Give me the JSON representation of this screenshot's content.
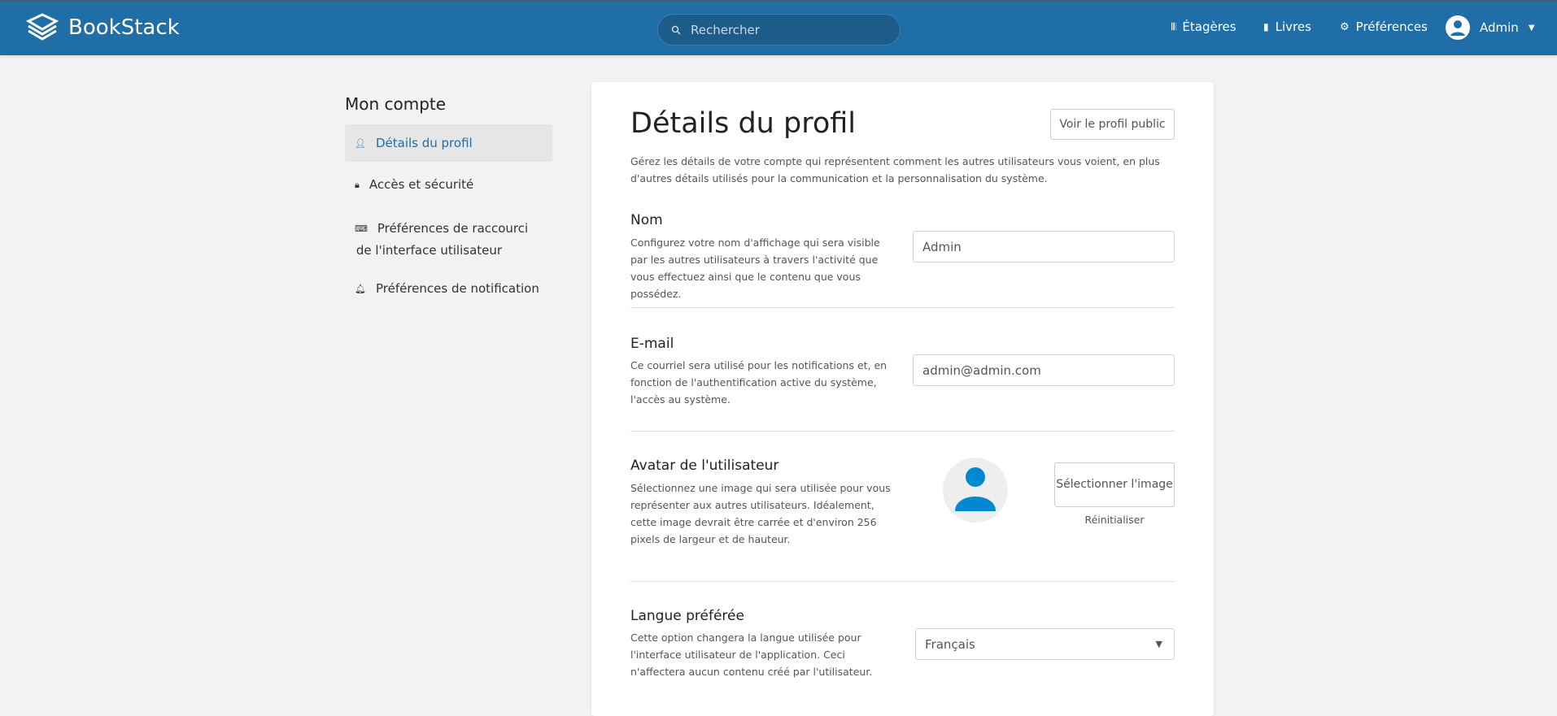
{
  "header": {
    "app_name": "BookStack",
    "search_placeholder": "Rechercher",
    "nav": [
      {
        "label": "Étagères",
        "icon": "shelves-icon"
      },
      {
        "label": "Livres",
        "icon": "books-icon"
      },
      {
        "label": "Préférences",
        "icon": "gear-icon"
      }
    ],
    "user": "Admin"
  },
  "sidebar": {
    "title": "Mon compte",
    "items": [
      {
        "label": "Détails du profil",
        "icon": "user-icon",
        "active": true
      },
      {
        "label": "Accès et sécurité",
        "icon": "lock-icon"
      },
      {
        "label": "Préférences de raccourci de l'interface utilisateur",
        "icon": "keyboard-icon"
      },
      {
        "label": "Préférences de notification",
        "icon": "bell-icon"
      }
    ]
  },
  "main": {
    "title": "Détails du profil",
    "public_profile_button": "Voir le profil public",
    "description": "Gérez les détails de votre compte qui représentent comment les autres utilisateurs vous voient, en plus d'autres détails utilisés pour la communication et la personnalisation du système.",
    "name": {
      "label": "Nom",
      "description": "Configurez votre nom d'affichage qui sera visible par les autres utilisateurs à travers l'activité que vous effectuez ainsi que le contenu que vous possédez.",
      "value": "Admin"
    },
    "email": {
      "label": "E-mail",
      "description": "Ce courriel sera utilisé pour les notifications et, en fonction de l'authentification active du système, l'accès au système.",
      "value": "admin@admin.com"
    },
    "avatar": {
      "label": "Avatar de l'utilisateur",
      "description": "Sélectionnez une image qui sera utilisée pour vous représenter aux autres utilisateurs. Idéalement, cette image devrait être carrée et d'environ 256 pixels de largeur et de hauteur.",
      "select_button": "Sélectionner l'image",
      "reset": "Réinitialiser"
    },
    "language": {
      "label": "Langue préférée",
      "description": "Cette option changera la langue utilisée pour l'interface utilisateur de l'application. Ceci n'affectera aucun contenu créé par l'utilisateur.",
      "value": "Français"
    }
  },
  "colors": {
    "header": "#206ea7",
    "accent": "#206ea7",
    "avatar": "#0288d1"
  }
}
